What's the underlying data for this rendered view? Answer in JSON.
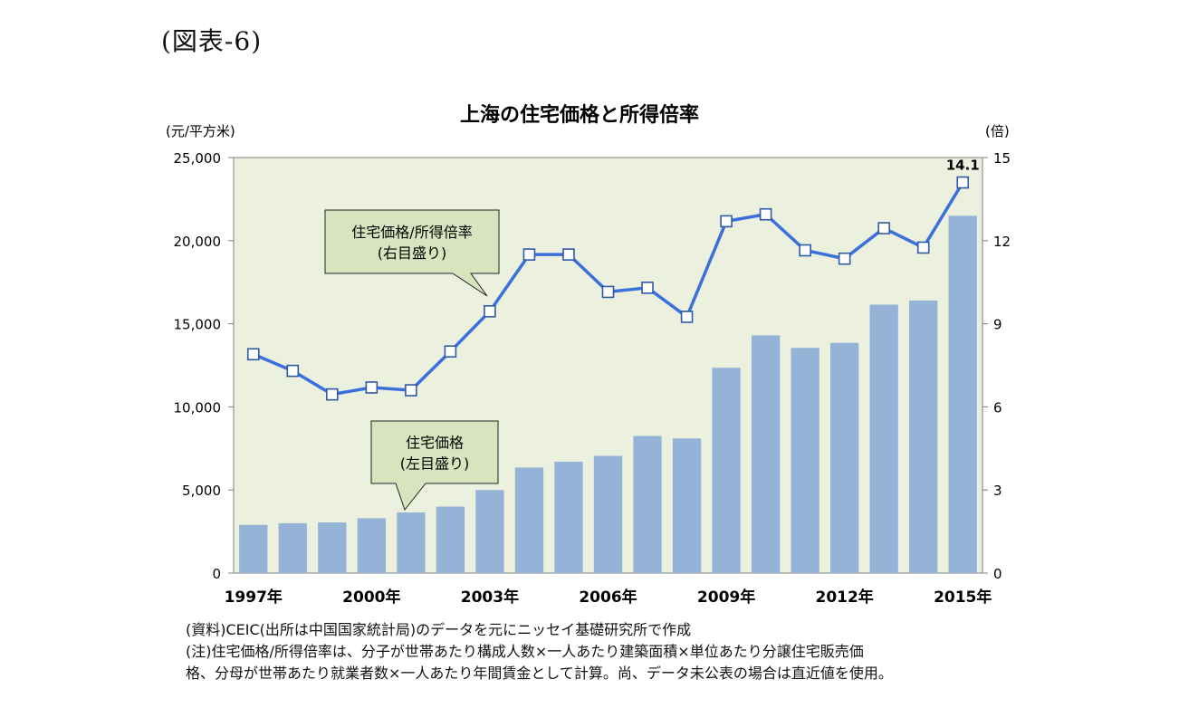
{
  "figure_label": "(図表-6)",
  "chart_data": {
    "type": "bar+line",
    "title": "上海の住宅価格と所得倍率",
    "left_axis": {
      "unit": "(元/平方米)",
      "ticks": [
        "25,000",
        "20,000",
        "15,000",
        "10,000",
        "5,000",
        "0"
      ],
      "ylim": [
        0,
        25000
      ]
    },
    "right_axis": {
      "unit": "(倍)",
      "ticks": [
        "15",
        "12",
        "9",
        "6",
        "3",
        "0"
      ],
      "ylim": [
        0,
        15
      ]
    },
    "categories": [
      "1997",
      "1998",
      "1999",
      "2000",
      "2001",
      "2002",
      "2003",
      "2004",
      "2005",
      "2006",
      "2007",
      "2008",
      "2009",
      "2010",
      "2011",
      "2012",
      "2013",
      "2014",
      "2015"
    ],
    "x_tick_labels": [
      {
        "index": 0,
        "label": "1997年"
      },
      {
        "index": 3,
        "label": "2000年"
      },
      {
        "index": 6,
        "label": "2003年"
      },
      {
        "index": 9,
        "label": "2006年"
      },
      {
        "index": 12,
        "label": "2009年"
      },
      {
        "index": 15,
        "label": "2012年"
      },
      {
        "index": 18,
        "label": "2015年"
      }
    ],
    "series": [
      {
        "name": "住宅価格",
        "axis": "left",
        "kind": "bar",
        "color": "#95b3d7",
        "values": [
          2900,
          3000,
          3050,
          3300,
          3650,
          4000,
          5000,
          6350,
          6700,
          7050,
          8250,
          8100,
          12350,
          14300,
          13550,
          13850,
          16150,
          16400,
          21500
        ]
      },
      {
        "name": "住宅価格/所得倍率",
        "axis": "right",
        "kind": "line",
        "color": "#3b6fdc",
        "values": [
          7.9,
          7.3,
          6.45,
          6.7,
          6.6,
          8.0,
          9.45,
          11.5,
          11.5,
          10.15,
          10.3,
          9.25,
          12.7,
          12.95,
          11.65,
          11.35,
          12.45,
          11.75,
          14.1
        ]
      }
    ],
    "data_labels": [
      {
        "series": 1,
        "index": 18,
        "text": "14.1"
      }
    ],
    "callouts": {
      "line": {
        "line1": "住宅価格/所得倍率",
        "line2": "(右目盛り)"
      },
      "bar": {
        "line1": "住宅価格",
        "line2": "(左目盛り)"
      }
    },
    "grid": false,
    "plot_background": "#ebf1de",
    "callout_background": "#d7e4bd"
  },
  "notes": [
    "(資料)CEIC(出所は中国国家統計局)のデータを元にニッセイ基礎研究所で作成",
    "(注)住宅価格/所得倍率は、分子が世帯あたり構成人数×一人あたり建築面積×単位あたり分譲住宅販売価",
    "格、分母が世帯あたり就業者数×一人あたり年間賃金として計算。尚、データ未公表の場合は直近値を使用。"
  ]
}
